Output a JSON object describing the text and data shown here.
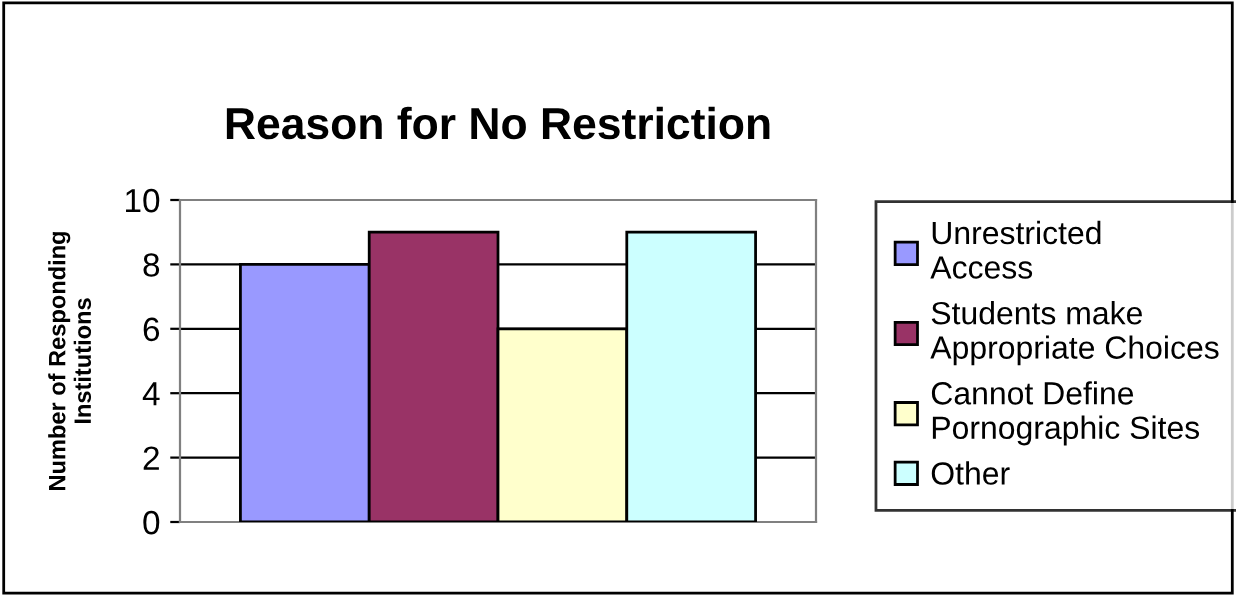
{
  "chart_data": {
    "type": "bar",
    "title": "Reason for No Restriction",
    "ylabel": "Number of Responding\nInstitutions",
    "categories": [
      null
    ],
    "series": [
      {
        "name": "Unrestricted\nAccess",
        "color": "#9999ff",
        "values": [
          8
        ]
      },
      {
        "name": "Students make\nAppropriate Choices",
        "color": "#993366",
        "values": [
          9
        ]
      },
      {
        "name": "Cannot Define\nPornographic Sites",
        "color": "#ffffcc",
        "values": [
          6
        ]
      },
      {
        "name": "Other",
        "color": "#ccffff",
        "values": [
          9
        ]
      }
    ],
    "ylim": [
      0,
      10
    ],
    "yticks": [
      0,
      2,
      4,
      6,
      8,
      10
    ],
    "grid": "y",
    "legend": "right"
  }
}
